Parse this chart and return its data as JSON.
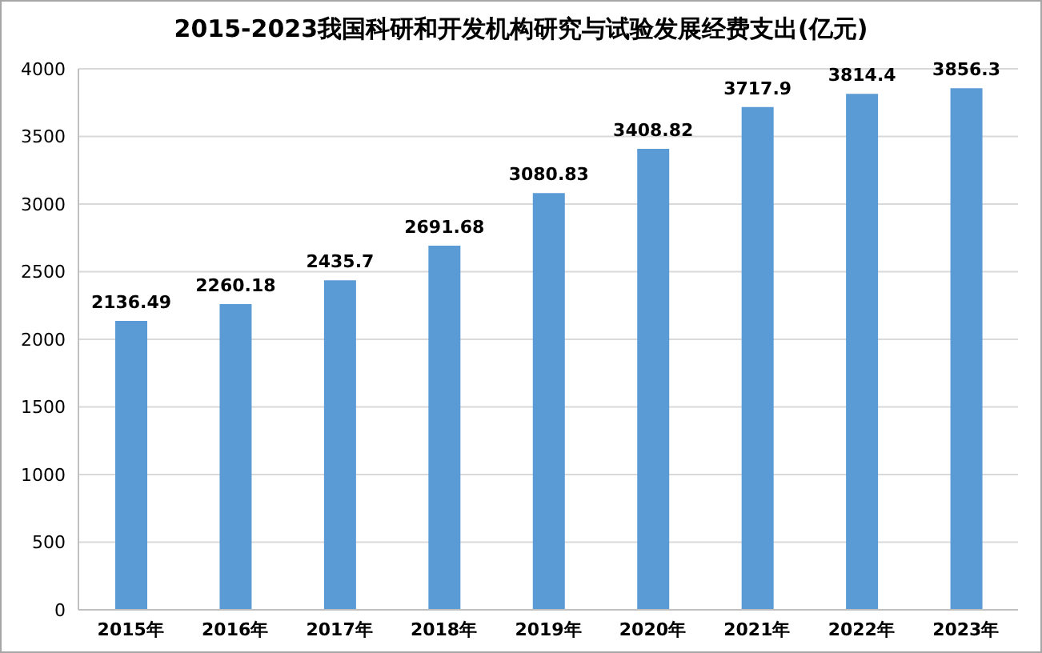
{
  "chart_data": {
    "type": "bar",
    "title": "2015-2023我国科研和开发机构研究与试验发展经费支出(亿元)",
    "categories": [
      "2015年",
      "2016年",
      "2017年",
      "2018年",
      "2019年",
      "2020年",
      "2021年",
      "2022年",
      "2023年"
    ],
    "values": [
      2136.49,
      2260.18,
      2435.7,
      2691.68,
      3080.83,
      3408.82,
      3717.9,
      3814.4,
      3856.3
    ],
    "color": "#5b9bd5",
    "ylim": [
      0,
      4000
    ],
    "yticks": [
      0,
      500,
      1000,
      1500,
      2000,
      2500,
      3000,
      3500,
      4000
    ],
    "grid": "y",
    "data_labels": true
  }
}
